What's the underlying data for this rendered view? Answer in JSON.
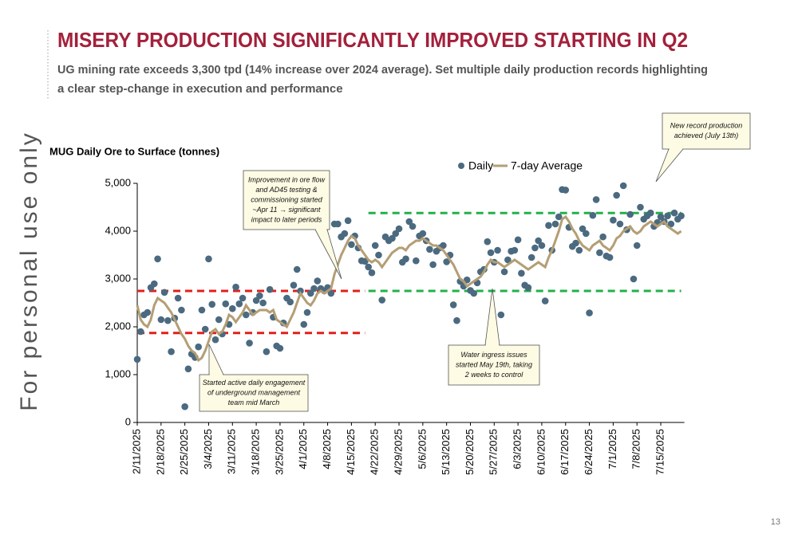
{
  "page": {
    "title": "MISERY PRODUCTION SIGNIFICANTLY IMPROVED STARTING IN Q2",
    "subtitle_lines": [
      "UG mining rate exceeds 3,300 tpd (14% increase over 2024 average). Set multiple daily production records highlighting",
      "a clear step-change in execution and performance"
    ],
    "watermark": "For personal use only",
    "page_number": "13"
  },
  "chart_data": {
    "type": "scatter-line",
    "y_label": "MUG Daily Ore to Surface (tonnes)",
    "legend": "top",
    "categories": [
      "2/11/2025",
      null,
      null,
      null,
      null,
      null,
      null,
      "2/18/2025",
      null,
      null,
      null,
      null,
      null,
      null,
      "2/25/2025",
      null,
      null,
      null,
      null,
      null,
      null,
      "3/4/2025",
      null,
      null,
      null,
      null,
      null,
      null,
      "3/11/2025",
      null,
      null,
      null,
      null,
      null,
      null,
      "3/18/2025",
      null,
      null,
      null,
      null,
      null,
      null,
      "3/25/2025",
      null,
      null,
      null,
      null,
      null,
      null,
      "4/1/2025",
      null,
      null,
      null,
      null,
      null,
      null,
      "4/8/2025",
      null,
      null,
      null,
      null,
      null,
      null,
      "4/15/2025",
      null,
      null,
      null,
      null,
      null,
      null,
      "4/22/2025",
      null,
      null,
      null,
      null,
      null,
      null,
      "4/29/2025",
      null,
      null,
      null,
      null,
      null,
      null,
      "5/6/2025",
      null,
      null,
      null,
      null,
      null,
      null,
      "5/13/2025",
      null,
      null,
      null,
      null,
      null,
      null,
      "5/20/2025",
      null,
      null,
      null,
      null,
      null,
      null,
      "5/27/2025",
      null,
      null,
      null,
      null,
      null,
      null,
      "6/3/2025",
      null,
      null,
      null,
      null,
      null,
      null,
      "6/10/2025",
      null,
      null,
      null,
      null,
      null,
      null,
      "6/17/2025",
      null,
      null,
      null,
      null,
      null,
      null,
      "6/24/2025",
      null,
      null,
      null,
      null,
      null,
      null,
      "7/1/2025",
      null,
      null,
      null,
      null,
      null,
      null,
      "7/8/2025",
      null,
      null,
      null,
      null,
      null,
      null,
      "7/15/2025",
      null,
      null,
      null,
      null,
      null,
      null
    ],
    "series": [
      {
        "name": "Daily",
        "kind": "dots",
        "color": "#4b6a80",
        "values": [
          1320,
          1900,
          2250,
          2300,
          2820,
          2900,
          3420,
          2150,
          2720,
          2130,
          1480,
          2180,
          2600,
          2350,
          330,
          1120,
          1430,
          1360,
          1580,
          2350,
          1950,
          3420,
          2470,
          1730,
          2150,
          1850,
          2480,
          2050,
          2380,
          2830,
          2480,
          2600,
          2250,
          1660,
          2300,
          2550,
          2650,
          2500,
          1480,
          2780,
          2200,
          1600,
          1550,
          2080,
          2600,
          2520,
          2870,
          3200,
          2750,
          2050,
          2300,
          2700,
          2800,
          2960,
          2800,
          2750,
          2820,
          2700,
          4150,
          4150,
          3880,
          3950,
          4220,
          3720,
          3900,
          3650,
          3380,
          3370,
          3250,
          3130,
          3700,
          3500,
          2560,
          3880,
          3800,
          3850,
          3950,
          4050,
          3350,
          3420,
          4200,
          4100,
          3380,
          3900,
          3950,
          3800,
          3620,
          3300,
          3580,
          3650,
          3700,
          3360,
          3500,
          2460,
          2130,
          2950,
          2850,
          2980,
          2760,
          2700,
          2920,
          3150,
          3200,
          3780,
          3550,
          3350,
          3600,
          2250,
          3150,
          3400,
          3580,
          3600,
          3820,
          3120,
          2870,
          2820,
          3450,
          3650,
          3800,
          3700,
          2540,
          4120,
          3600,
          4150,
          4300,
          4870,
          4860,
          4080,
          3680,
          3750,
          3600,
          4050,
          3950,
          2290,
          4330,
          4660,
          3550,
          3880,
          3480,
          3450,
          4230,
          4750,
          4150,
          4950,
          4030,
          4350,
          3000,
          3700,
          4500,
          4250,
          4320,
          4380,
          4100,
          4180,
          4300,
          4200,
          4320,
          4150,
          4380,
          4250,
          4320
        ]
      },
      {
        "name": "7-day Average",
        "kind": "line",
        "color": "#b49e74",
        "values": [
          2450,
          2150,
          2050,
          2000,
          2150,
          2450,
          2600,
          2550,
          2500,
          2400,
          2300,
          2150,
          2000,
          1850,
          1750,
          1600,
          1500,
          1450,
          1300,
          1350,
          1500,
          1700,
          1900,
          1950,
          1850,
          1900,
          2050,
          2250,
          2200,
          2100,
          2200,
          2300,
          2450,
          2350,
          2250,
          2300,
          2350,
          2350,
          2350,
          2300,
          2350,
          2150,
          2100,
          2050,
          2000,
          2150,
          2300,
          2500,
          2700,
          2600,
          2500,
          2450,
          2550,
          2700,
          2750,
          2700,
          2750,
          2800,
          3100,
          3300,
          3500,
          3650,
          3800,
          3900,
          3850,
          3700,
          3600,
          3500,
          3400,
          3350,
          3400,
          3350,
          3250,
          3350,
          3450,
          3550,
          3600,
          3650,
          3650,
          3600,
          3700,
          3750,
          3800,
          3800,
          3850,
          3800,
          3750,
          3700,
          3700,
          3650,
          3600,
          3500,
          3400,
          3300,
          3150,
          3000,
          2950,
          2850,
          2900,
          2950,
          3000,
          3050,
          3150,
          3300,
          3400,
          3350,
          3350,
          3300,
          3250,
          3300,
          3350,
          3400,
          3350,
          3300,
          3250,
          3200,
          3250,
          3300,
          3350,
          3300,
          3250,
          3450,
          3600,
          3800,
          4000,
          4250,
          4300,
          4200,
          4050,
          3950,
          3800,
          3700,
          3650,
          3600,
          3700,
          3750,
          3800,
          3700,
          3650,
          3600,
          3700,
          3850,
          3900,
          4000,
          4050,
          4100,
          4000,
          3950,
          4000,
          4100,
          4150,
          4200,
          4150,
          4100,
          4150,
          4200,
          4100,
          4050,
          4000,
          3950,
          4000
        ]
      }
    ],
    "reference_lines": [
      {
        "value": 2750,
        "color": "#e0201c",
        "from": 0,
        "to": 67
      },
      {
        "value": 1870,
        "color": "#e0201c",
        "from": 0,
        "to": 67
      },
      {
        "value": 4380,
        "color": "#22b04a",
        "from": 68,
        "to": 160
      },
      {
        "value": 2750,
        "color": "#22b04a",
        "from": 68,
        "to": 160
      }
    ],
    "ylim": [
      0,
      5000
    ],
    "yticks": [
      0,
      {
        "value": 1000,
        "label": "1,000"
      },
      {
        "value": 2000,
        "label": "2,000"
      },
      {
        "value": 3000,
        "label": "3,000"
      },
      {
        "value": 4000,
        "label": "4,000"
      },
      {
        "value": 5000,
        "label": "5,000"
      }
    ],
    "annotations": [
      {
        "lines": [
          "Improvement in ore flow",
          "and AD45 testing &",
          "commissioning started",
          "~Apr 11 → significant",
          "impact to later periods"
        ]
      },
      {
        "lines": [
          "Started active daily engagement",
          "of underground management",
          "team mid March"
        ]
      },
      {
        "lines": [
          "Water ingress issues",
          "started May 19th, taking",
          "2 weeks to control"
        ]
      },
      {
        "lines": [
          "New record production",
          "achieved (July 13th)"
        ]
      }
    ]
  }
}
